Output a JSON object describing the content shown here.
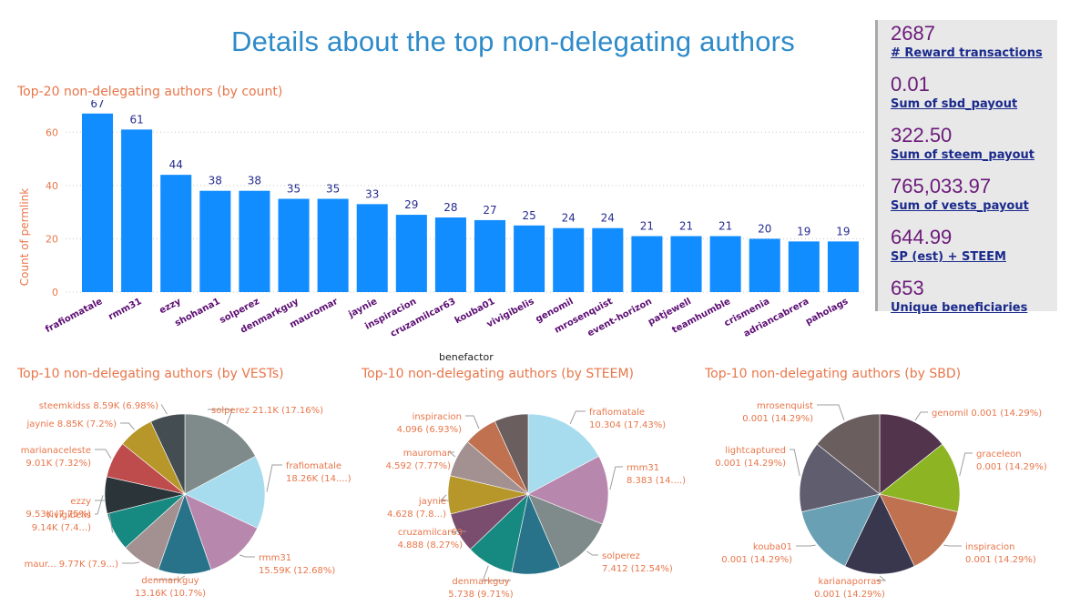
{
  "header": {
    "title": "Details about the top non-delegating authors"
  },
  "kpis": [
    {
      "value": "2687",
      "label": "# Reward transactions"
    },
    {
      "value": "0.01",
      "label": "Sum of sbd_payout"
    },
    {
      "value": "322.50",
      "label": "Sum of steem_payout"
    },
    {
      "value": "765,033.97",
      "label": "Sum of vests_payout"
    },
    {
      "value": "644.99",
      "label": "SP (est) + STEEM"
    },
    {
      "value": "653",
      "label": "Unique beneficiaries"
    }
  ],
  "colors": {
    "bar": "#118dff",
    "title_orange": "#e8764a",
    "data_label": "#252c8e",
    "axis_label_purple": "#5c0d73",
    "kpi_value": "#6b1a7a",
    "kpi_label": "#1a2a8c"
  },
  "chart_data": [
    {
      "type": "bar",
      "title": "Top-20 non-delegating authors (by count)",
      "xlabel": "benefactor",
      "ylabel": "Count of permlink",
      "ylim": [
        0,
        70
      ],
      "yticks": [
        0,
        20,
        40,
        60
      ],
      "grid": true,
      "categories": [
        "frafiomatale",
        "rmm31",
        "ezzy",
        "shohana1",
        "solperez",
        "denmarkguy",
        "mauromar",
        "jaynie",
        "inspiracion",
        "cruzamilcar63",
        "kouba01",
        "vivigibelis",
        "genomil",
        "mrosenquist",
        "event-horizon",
        "patjewell",
        "teamhumble",
        "crismenia",
        "adriancabrera",
        "paholags"
      ],
      "values": [
        67,
        61,
        44,
        38,
        38,
        35,
        35,
        33,
        29,
        28,
        27,
        25,
        24,
        24,
        21,
        21,
        21,
        20,
        19,
        19
      ]
    },
    {
      "type": "pie",
      "title": "Top-10 non-delegating authors (by VESTs)",
      "slices": [
        {
          "name": "solperez",
          "value": 21.1,
          "label": "solperez 21.1K (17.16%)",
          "color": "#7f8b8b"
        },
        {
          "name": "frafiomatale",
          "value": 18.26,
          "label": "frafiomatale|18.26K (14....)",
          "color": "#a6dcee"
        },
        {
          "name": "rmm31",
          "value": 15.59,
          "label": "rmm31|15.59K (12.68%)",
          "color": "#b887ad"
        },
        {
          "name": "denmarkguy",
          "value": 13.16,
          "label": "denmarkguy|13.16K (10.7%)",
          "color": "#28738a"
        },
        {
          "name": "mauromar",
          "value": 9.77,
          "label": "maur... 9.77K (7.9...)",
          "color": "#a39090"
        },
        {
          "name": "ezzy",
          "value": 9.53,
          "label": "ezzy|9.53K (7.75%)",
          "color": "#168980"
        },
        {
          "name": "vivigibelis",
          "value": 9.14,
          "label": "vivigibelis|9.14K (7.4...)",
          "color": "#2b3438"
        },
        {
          "name": "marianaceleste",
          "value": 9.01,
          "label": "marianaceleste|9.01K (7.32%)",
          "color": "#bf4c4c"
        },
        {
          "name": "jaynie",
          "value": 8.85,
          "label": "jaynie 8.85K (7.2%)",
          "color": "#b7972a"
        },
        {
          "name": "steemkidss",
          "value": 8.59,
          "label": "steemkidss 8.59K (6.98%)",
          "color": "#434d52"
        }
      ]
    },
    {
      "type": "pie",
      "title": "Top-10 non-delegating authors (by STEEM)",
      "slices": [
        {
          "name": "frafiomatale",
          "value": 10.304,
          "label": "frafiomatale|10.304 (17.43%)",
          "color": "#a6dcee"
        },
        {
          "name": "rmm31",
          "value": 8.383,
          "label": "rmm31|8.383 (14....)",
          "color": "#b887ad"
        },
        {
          "name": "solperez",
          "value": 7.412,
          "label": "solperez|7.412 (12.54%)",
          "color": "#7f8b8b"
        },
        {
          "name": "(unlabeled)",
          "value": 5.9,
          "label": "",
          "color": "#28738a"
        },
        {
          "name": "denmarkguy",
          "value": 5.738,
          "label": "denmarkguy|5.738 (9.71%)",
          "color": "#168980"
        },
        {
          "name": "cruzamilcar63",
          "value": 4.888,
          "label": "cruzamilcar63|4.888 (8.27%)",
          "color": "#7a4d6e"
        },
        {
          "name": "jaynie",
          "value": 4.628,
          "label": "jaynie|4.628 (7.8...)",
          "color": "#b7972a"
        },
        {
          "name": "mauromar",
          "value": 4.592,
          "label": "mauromar|4.592 (7.77%)",
          "color": "#a39090"
        },
        {
          "name": "inspiracion",
          "value": 4.096,
          "label": "inspiracion|4.096 (6.93%)",
          "color": "#c07150"
        },
        {
          "name": "(unlabeled)",
          "value": 4.1,
          "label": "",
          "color": "#6b5e5e"
        }
      ]
    },
    {
      "type": "pie",
      "title": "Top-10 non-delegating authors (by SBD)",
      "slices": [
        {
          "name": "genomil",
          "value": 0.001,
          "label": "genomil 0.001 (14.29%)",
          "color": "#52344d"
        },
        {
          "name": "graceleon",
          "value": 0.001,
          "label": "graceleon|0.001 (14.29%)",
          "color": "#8cb423"
        },
        {
          "name": "inspiracion",
          "value": 0.001,
          "label": "inspiracion|0.001 (14.29%)",
          "color": "#c07150"
        },
        {
          "name": "karianaporras",
          "value": 0.001,
          "label": "karianaporras|0.001 (14.29%)",
          "color": "#38374d"
        },
        {
          "name": "kouba01",
          "value": 0.001,
          "label": "kouba01|0.001 (14.29%)",
          "color": "#6aa0b4"
        },
        {
          "name": "lightcaptured",
          "value": 0.001,
          "label": "lightcaptured|0.001 (14.29%)",
          "color": "#5f5d6e"
        },
        {
          "name": "mrosenquist",
          "value": 0.001,
          "label": "mrosenquist|0.001 (14.29%)",
          "color": "#6b5e5e"
        }
      ]
    }
  ]
}
